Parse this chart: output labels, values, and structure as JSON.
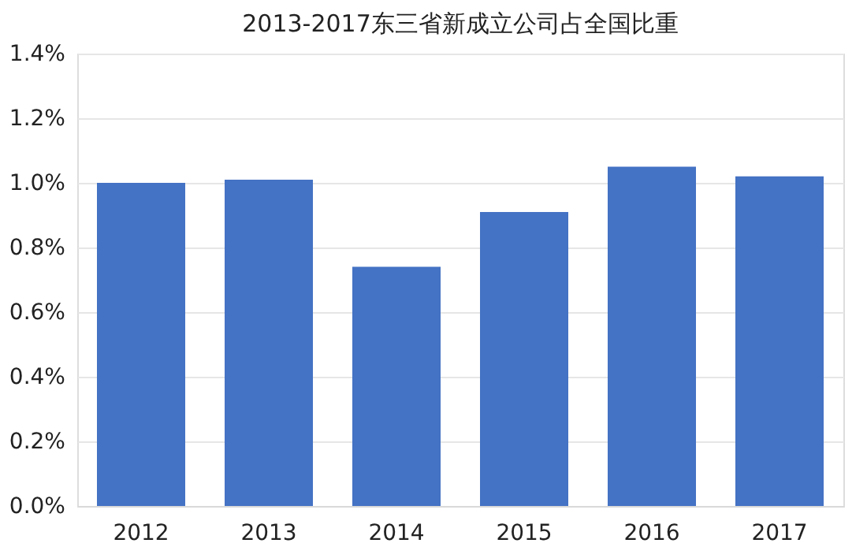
{
  "chart_data": {
    "type": "bar",
    "title": "2013-2017东三省新成立公司占全国比重",
    "categories": [
      "2012",
      "2013",
      "2014",
      "2015",
      "2016",
      "2017"
    ],
    "values": [
      1.0,
      1.01,
      0.74,
      0.91,
      1.05,
      1.02
    ],
    "color": "#4472c4",
    "ylim": [
      0,
      1.4
    ],
    "yticks": [
      {
        "value": 0,
        "label": "0.0%"
      },
      {
        "value": 0.2,
        "label": "0.2%"
      },
      {
        "value": 0.4,
        "label": "0.4%"
      },
      {
        "value": 0.6,
        "label": "0.6%"
      },
      {
        "value": 0.8,
        "label": "0.8%"
      },
      {
        "value": 1.0,
        "label": "1.0%"
      },
      {
        "value": 1.2,
        "label": "1.2%"
      },
      {
        "value": 1.4,
        "label": "1.4%"
      }
    ],
    "grid": "y"
  }
}
